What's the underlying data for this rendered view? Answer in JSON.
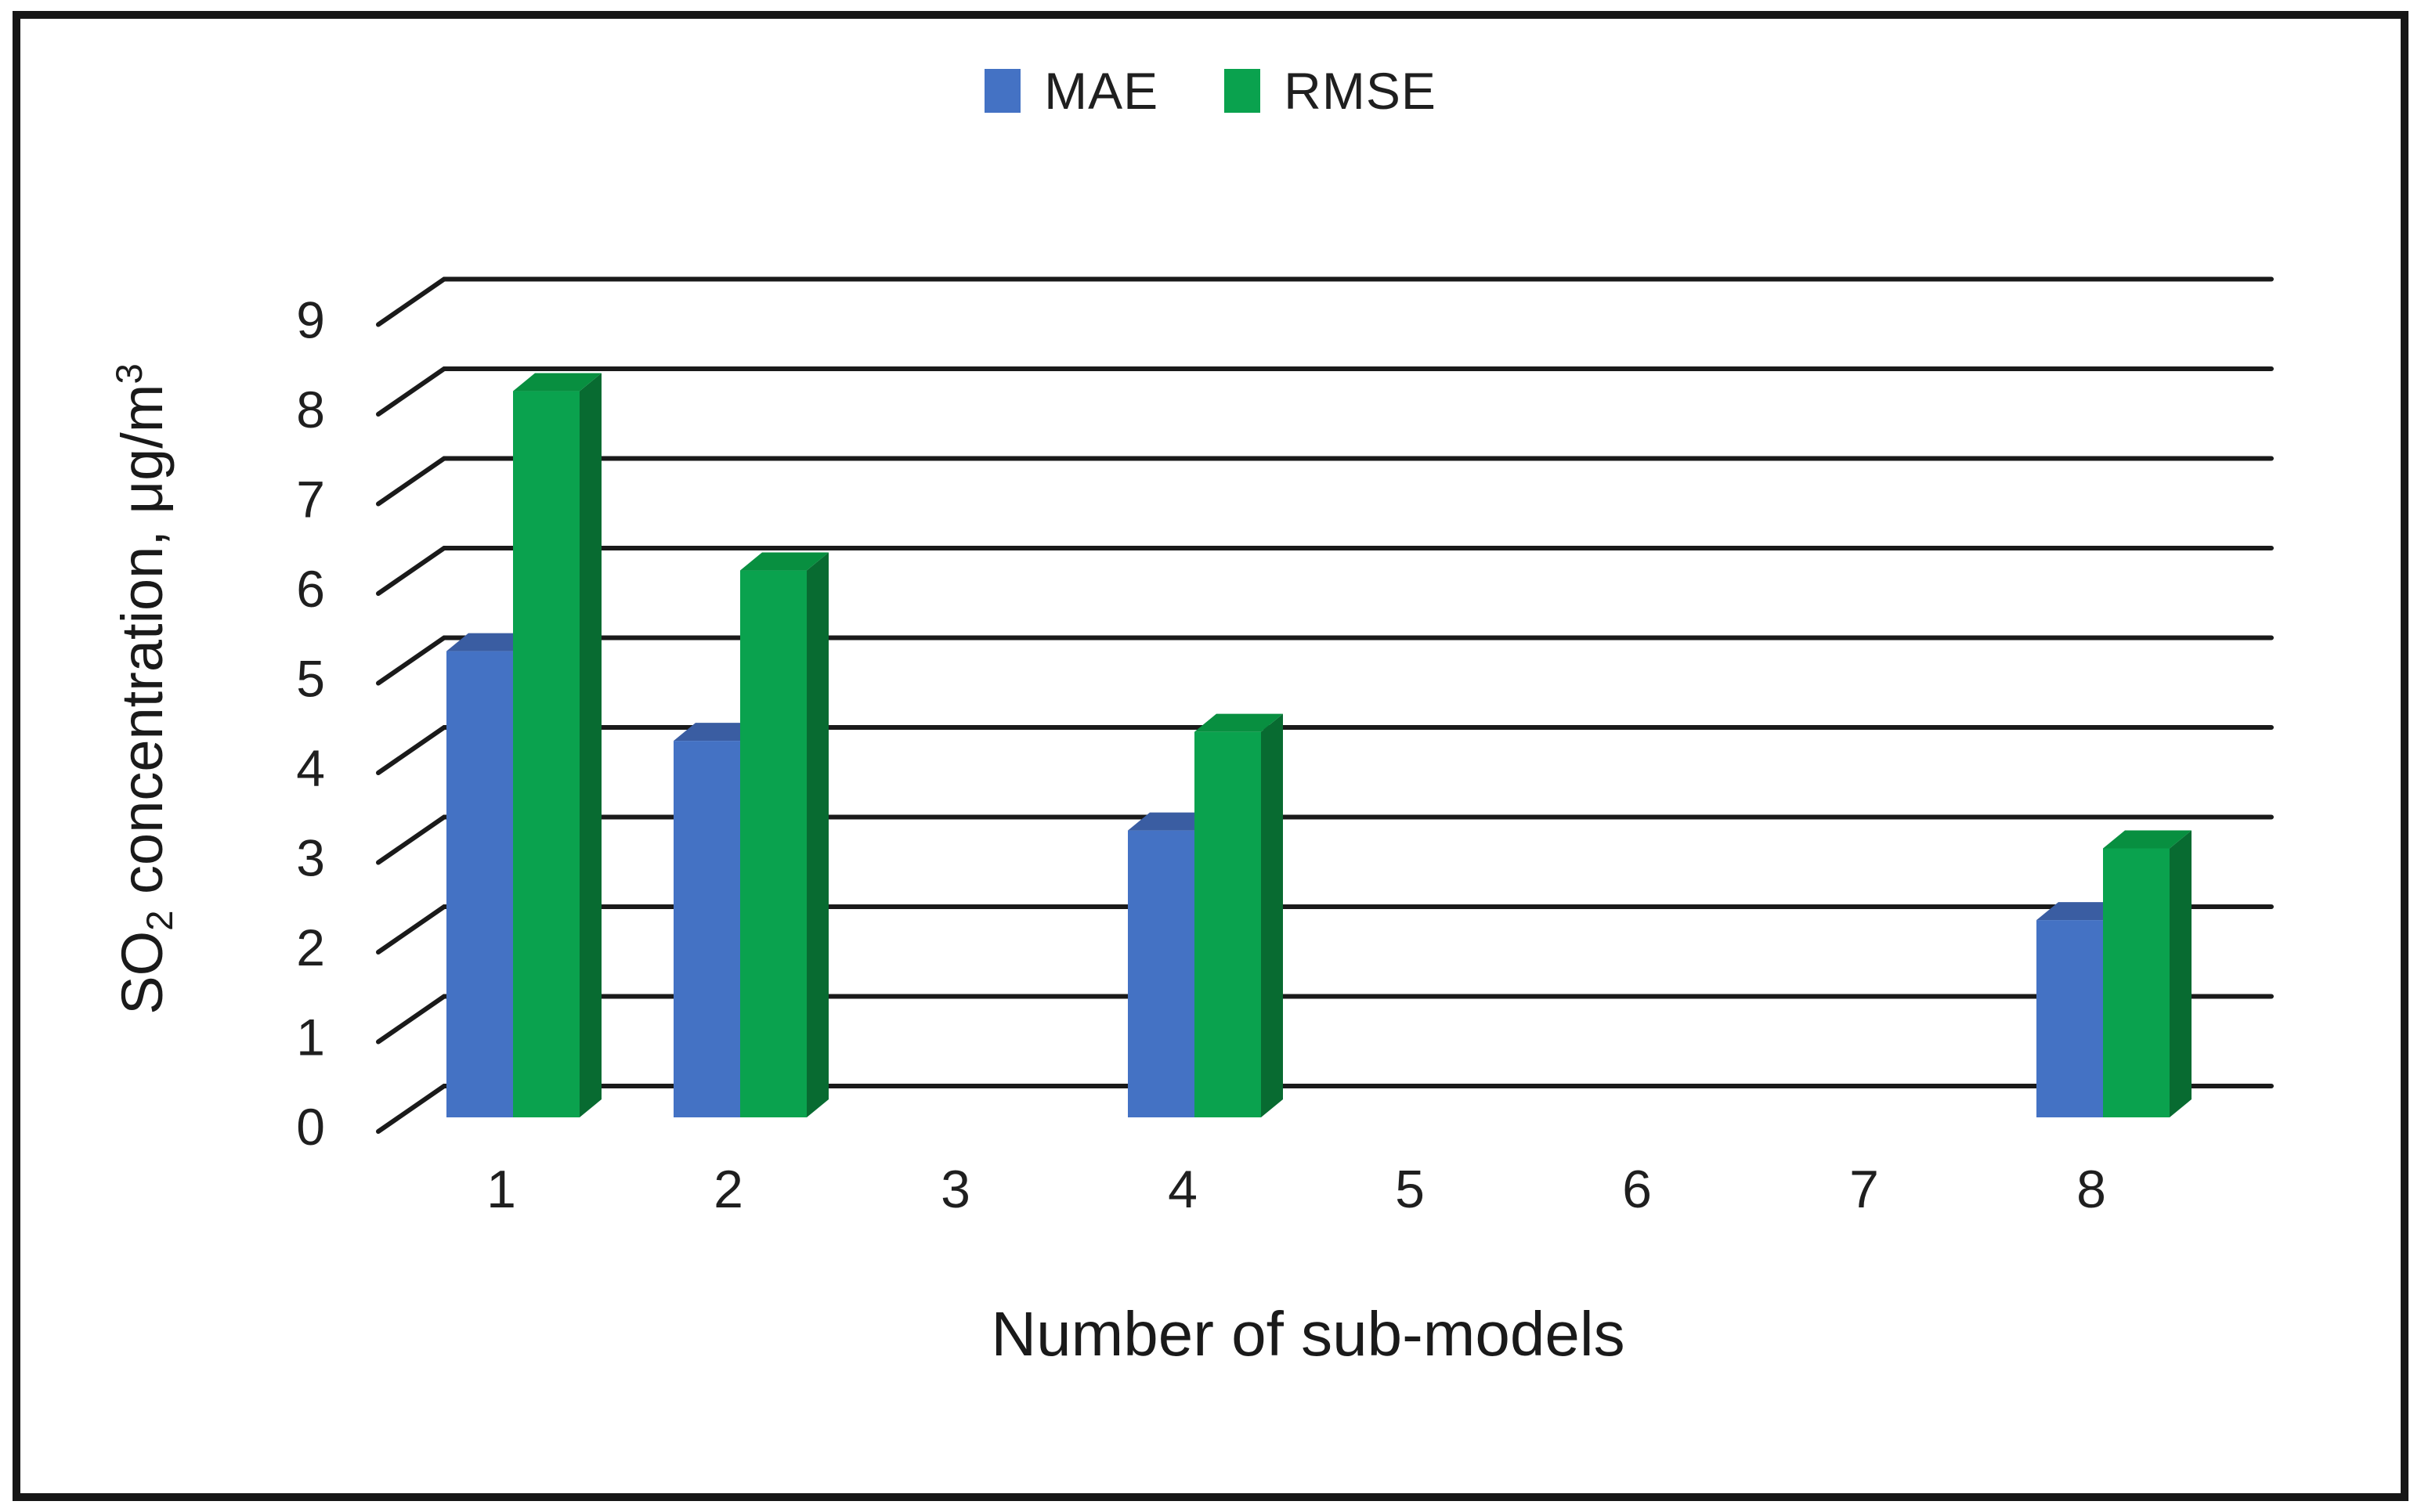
{
  "figure": {
    "background": "#ffffff",
    "border_color": "#161616"
  },
  "legend": {
    "position": "top-center",
    "items": [
      {
        "label": "MAE",
        "color": "#4472C4"
      },
      {
        "label": "RMSE",
        "color": "#0AA24E"
      }
    ]
  },
  "labels": {
    "y_title_pre": "SO",
    "y_title_sub": "2",
    "y_title_mid": " concentration, μg/m",
    "y_title_sup": "3",
    "x_title": "Number of sub-models"
  },
  "axis": {
    "yticks": [
      "0",
      "1",
      "2",
      "3",
      "4",
      "5",
      "6",
      "7",
      "8",
      "9"
    ],
    "text_color": "#1f1f1f",
    "grid_color": "#1a1a1a"
  },
  "chart_data": {
    "type": "bar",
    "effect": "3d",
    "title": "",
    "xlabel": "Number of sub-models",
    "ylabel": "SO2 concentration, ug/m3",
    "ylim": [
      0,
      9
    ],
    "ytick_step": 1,
    "grid": true,
    "legend_position": "top",
    "categories": [
      "1",
      "2",
      "3",
      "4",
      "5",
      "6",
      "7",
      "8"
    ],
    "series": [
      {
        "name": "MAE",
        "color": "#4472C4",
        "top_color": "#3A5DA2",
        "side_color": "#2E4E8C",
        "values": [
          5.2,
          4.2,
          null,
          3.2,
          null,
          null,
          null,
          2.2
        ]
      },
      {
        "name": "RMSE",
        "color": "#0AA24E",
        "top_color": "#088F40",
        "side_color": "#086B31",
        "values": [
          8.1,
          6.1,
          null,
          4.3,
          null,
          null,
          null,
          3.0
        ]
      }
    ]
  }
}
